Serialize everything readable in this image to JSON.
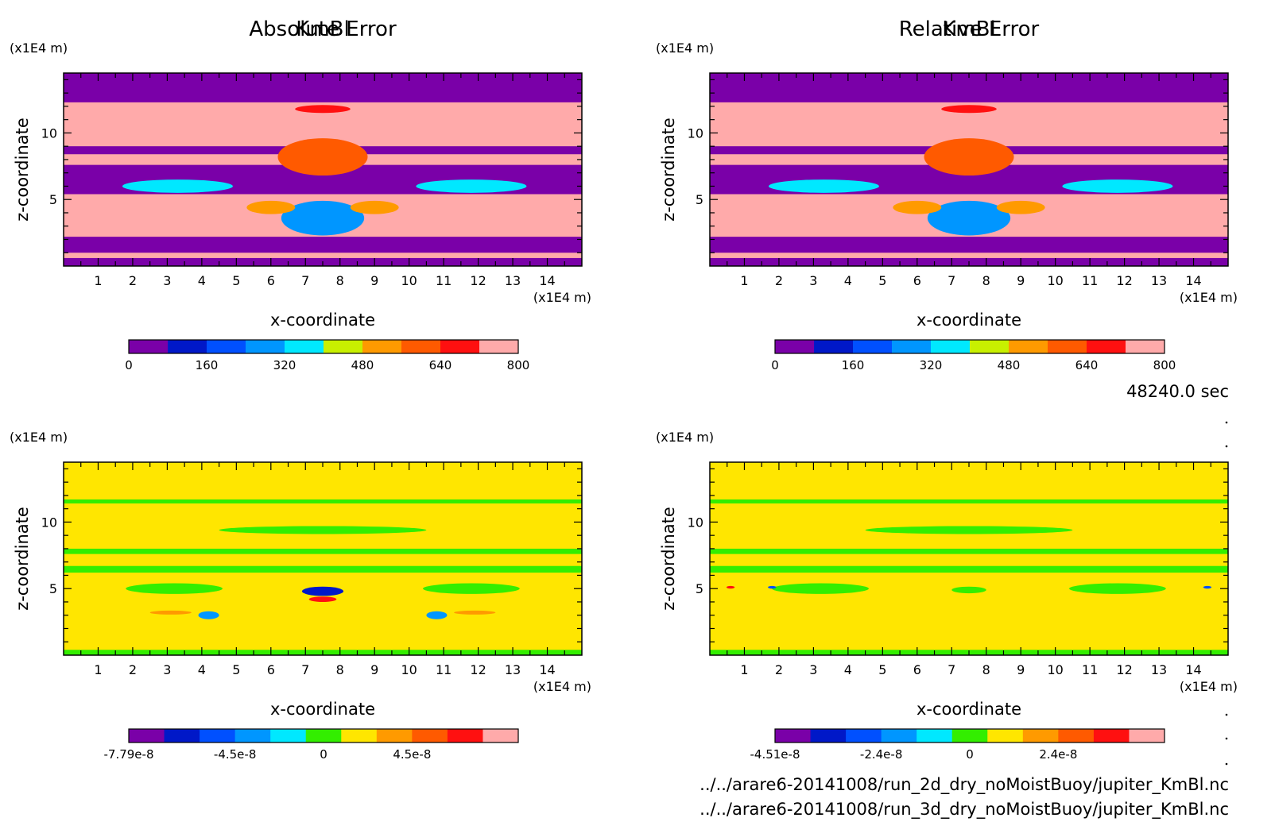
{
  "chart_data": [
    {
      "type": "heatmap",
      "title": "KmBl",
      "xlabel": "x-coordinate",
      "ylabel": "z-coordinate",
      "x_unit": "(x1E4 m)",
      "y_unit": "(x1E4 m)",
      "xlim": [
        0,
        15
      ],
      "ylim": [
        0,
        14.5
      ],
      "xticks": [
        1,
        2,
        3,
        4,
        5,
        6,
        7,
        8,
        9,
        10,
        11,
        12,
        13,
        14
      ],
      "yticks": [
        5,
        10
      ],
      "colorbar": {
        "colors": [
          "#7a00a8",
          "#0018c8",
          "#0050ff",
          "#0096ff",
          "#00e8ff",
          "#c8f000",
          "#ff9a00",
          "#ff5a00",
          "#ff1010",
          "#ffaaaa"
        ],
        "tick_labels": [
          "0",
          "160",
          "320",
          "480",
          "640",
          "800"
        ]
      },
      "field": {
        "background": "#ffaaaa",
        "bands": [
          {
            "z": [
              12.3,
              14.5
            ],
            "color": "#7a00a8"
          },
          {
            "z": [
              8.4,
              9.0
            ],
            "color": "#7a00a8"
          },
          {
            "z": [
              5.4,
              7.6
            ],
            "color": "#7a00a8"
          },
          {
            "z": [
              1.0,
              2.2
            ],
            "color": "#7a00a8"
          },
          {
            "z": [
              0.0,
              0.6
            ],
            "color": "#7a00a8"
          }
        ],
        "features": [
          {
            "x": 7.5,
            "z": 11.8,
            "rx": 0.8,
            "rz": 0.3,
            "color": "#ff1010"
          },
          {
            "x": 7.5,
            "z": 8.2,
            "rx": 1.3,
            "rz": 1.4,
            "color": "#ff5a00"
          },
          {
            "x": 7.5,
            "z": 3.6,
            "rx": 1.2,
            "rz": 1.3,
            "color": "#0096ff"
          },
          {
            "x": 3.3,
            "z": 6.0,
            "rx": 1.6,
            "rz": 0.5,
            "color": "#00e8ff"
          },
          {
            "x": 11.8,
            "z": 6.0,
            "rx": 1.6,
            "rz": 0.5,
            "color": "#00e8ff"
          },
          {
            "x": 6.0,
            "z": 4.4,
            "rx": 0.7,
            "rz": 0.5,
            "color": "#ff9a00"
          },
          {
            "x": 9.0,
            "z": 4.4,
            "rx": 0.7,
            "rz": 0.5,
            "color": "#ff9a00"
          }
        ]
      }
    },
    {
      "type": "heatmap",
      "title": "KmBl",
      "xlabel": "x-coordinate",
      "ylabel": "z-coordinate",
      "x_unit": "(x1E4 m)",
      "y_unit": "(x1E4 m)",
      "xlim": [
        0,
        15
      ],
      "ylim": [
        0,
        14.5
      ],
      "xticks": [
        1,
        2,
        3,
        4,
        5,
        6,
        7,
        8,
        9,
        10,
        11,
        12,
        13,
        14
      ],
      "yticks": [
        5,
        10
      ],
      "colorbar": {
        "colors": [
          "#7a00a8",
          "#0018c8",
          "#0050ff",
          "#0096ff",
          "#00e8ff",
          "#c8f000",
          "#ff9a00",
          "#ff5a00",
          "#ff1010",
          "#ffaaaa"
        ],
        "tick_labels": [
          "0",
          "160",
          "320",
          "480",
          "640",
          "800"
        ]
      },
      "field": {
        "background": "#ffaaaa",
        "bands": [
          {
            "z": [
              12.3,
              14.5
            ],
            "color": "#7a00a8"
          },
          {
            "z": [
              8.4,
              9.0
            ],
            "color": "#7a00a8"
          },
          {
            "z": [
              5.4,
              7.6
            ],
            "color": "#7a00a8"
          },
          {
            "z": [
              1.0,
              2.2
            ],
            "color": "#7a00a8"
          },
          {
            "z": [
              0.0,
              0.6
            ],
            "color": "#7a00a8"
          }
        ],
        "features": [
          {
            "x": 7.5,
            "z": 11.8,
            "rx": 0.8,
            "rz": 0.3,
            "color": "#ff1010"
          },
          {
            "x": 7.5,
            "z": 8.2,
            "rx": 1.3,
            "rz": 1.4,
            "color": "#ff5a00"
          },
          {
            "x": 7.5,
            "z": 3.6,
            "rx": 1.2,
            "rz": 1.3,
            "color": "#0096ff"
          },
          {
            "x": 3.3,
            "z": 6.0,
            "rx": 1.6,
            "rz": 0.5,
            "color": "#00e8ff"
          },
          {
            "x": 11.8,
            "z": 6.0,
            "rx": 1.6,
            "rz": 0.5,
            "color": "#00e8ff"
          },
          {
            "x": 6.0,
            "z": 4.4,
            "rx": 0.7,
            "rz": 0.5,
            "color": "#ff9a00"
          },
          {
            "x": 9.0,
            "z": 4.4,
            "rx": 0.7,
            "rz": 0.5,
            "color": "#ff9a00"
          }
        ]
      }
    },
    {
      "type": "heatmap",
      "title": "Absolute Error",
      "xlabel": "x-coordinate",
      "ylabel": "z-coordinate",
      "x_unit": "(x1E4 m)",
      "y_unit": "(x1E4 m)",
      "xlim": [
        0,
        15
      ],
      "ylim": [
        0,
        14.5
      ],
      "xticks": [
        1,
        2,
        3,
        4,
        5,
        6,
        7,
        8,
        9,
        10,
        11,
        12,
        13,
        14
      ],
      "yticks": [
        5,
        10
      ],
      "colorbar": {
        "colors": [
          "#7a00a8",
          "#0018c8",
          "#0050ff",
          "#0096ff",
          "#00e8ff",
          "#33ee00",
          "#ffe600",
          "#ff9a00",
          "#ff5a00",
          "#ff1010",
          "#ffaaaa"
        ],
        "tick_labels": [
          "-7.79e-8",
          "-4.5e-8",
          "0",
          "4.5e-8"
        ]
      },
      "field": {
        "background": "#ffe600",
        "bands": [
          {
            "z": [
              11.4,
              11.7
            ],
            "color": "#33ee00"
          },
          {
            "z": [
              7.6,
              8.0
            ],
            "color": "#33ee00"
          },
          {
            "z": [
              6.2,
              6.7
            ],
            "color": "#33ee00"
          },
          {
            "z": [
              0.0,
              0.4
            ],
            "color": "#33ee00"
          }
        ],
        "features": [
          {
            "x": 7.5,
            "z": 9.4,
            "rx": 3.0,
            "rz": 0.3,
            "color": "#33ee00"
          },
          {
            "x": 3.2,
            "z": 5.0,
            "rx": 1.4,
            "rz": 0.4,
            "color": "#33ee00"
          },
          {
            "x": 11.8,
            "z": 5.0,
            "rx": 1.4,
            "rz": 0.4,
            "color": "#33ee00"
          },
          {
            "x": 7.5,
            "z": 4.8,
            "rx": 0.6,
            "rz": 0.35,
            "color": "#0018c8"
          },
          {
            "x": 7.5,
            "z": 4.2,
            "rx": 0.4,
            "rz": 0.2,
            "color": "#ff1010"
          },
          {
            "x": 4.2,
            "z": 3.0,
            "rx": 0.3,
            "rz": 0.3,
            "color": "#0096ff"
          },
          {
            "x": 10.8,
            "z": 3.0,
            "rx": 0.3,
            "rz": 0.3,
            "color": "#0096ff"
          },
          {
            "x": 3.1,
            "z": 3.2,
            "rx": 0.6,
            "rz": 0.15,
            "color": "#ff9a00"
          },
          {
            "x": 11.9,
            "z": 3.2,
            "rx": 0.6,
            "rz": 0.15,
            "color": "#ff9a00"
          }
        ]
      }
    },
    {
      "type": "heatmap",
      "title": "Relative Error",
      "xlabel": "x-coordinate",
      "ylabel": "z-coordinate",
      "x_unit": "(x1E4 m)",
      "y_unit": "(x1E4 m)",
      "xlim": [
        0,
        15
      ],
      "ylim": [
        0,
        14.5
      ],
      "xticks": [
        1,
        2,
        3,
        4,
        5,
        6,
        7,
        8,
        9,
        10,
        11,
        12,
        13,
        14
      ],
      "yticks": [
        5,
        10
      ],
      "colorbar": {
        "colors": [
          "#7a00a8",
          "#0018c8",
          "#0050ff",
          "#0096ff",
          "#00e8ff",
          "#33ee00",
          "#ffe600",
          "#ff9a00",
          "#ff5a00",
          "#ff1010",
          "#ffaaaa"
        ],
        "tick_labels": [
          "-4.51e-8",
          "-2.4e-8",
          "0",
          "2.4e-8"
        ]
      },
      "field": {
        "background": "#ffe600",
        "bands": [
          {
            "z": [
              11.4,
              11.7
            ],
            "color": "#33ee00"
          },
          {
            "z": [
              7.6,
              8.0
            ],
            "color": "#33ee00"
          },
          {
            "z": [
              6.2,
              6.7
            ],
            "color": "#33ee00"
          },
          {
            "z": [
              0.0,
              0.4
            ],
            "color": "#33ee00"
          }
        ],
        "features": [
          {
            "x": 7.5,
            "z": 9.4,
            "rx": 3.0,
            "rz": 0.3,
            "color": "#33ee00"
          },
          {
            "x": 3.2,
            "z": 5.0,
            "rx": 1.4,
            "rz": 0.4,
            "color": "#33ee00"
          },
          {
            "x": 11.8,
            "z": 5.0,
            "rx": 1.4,
            "rz": 0.4,
            "color": "#33ee00"
          },
          {
            "x": 7.5,
            "z": 4.9,
            "rx": 0.5,
            "rz": 0.25,
            "color": "#33ee00"
          },
          {
            "x": 0.6,
            "z": 5.1,
            "rx": 0.12,
            "rz": 0.1,
            "color": "#ff1010"
          },
          {
            "x": 14.4,
            "z": 5.1,
            "rx": 0.12,
            "rz": 0.1,
            "color": "#0050ff"
          },
          {
            "x": 1.8,
            "z": 5.1,
            "rx": 0.12,
            "rz": 0.1,
            "color": "#0050ff"
          }
        ]
      }
    }
  ],
  "time_label": "48240.0 sec",
  "files": [
    "../../arare6-20141008/run_2d_dry_noMoistBuoy/jupiter_KmBl.nc",
    "../../arare6-20141008/run_3d_dry_noMoistBuoy/jupiter_KmBl.nc"
  ]
}
